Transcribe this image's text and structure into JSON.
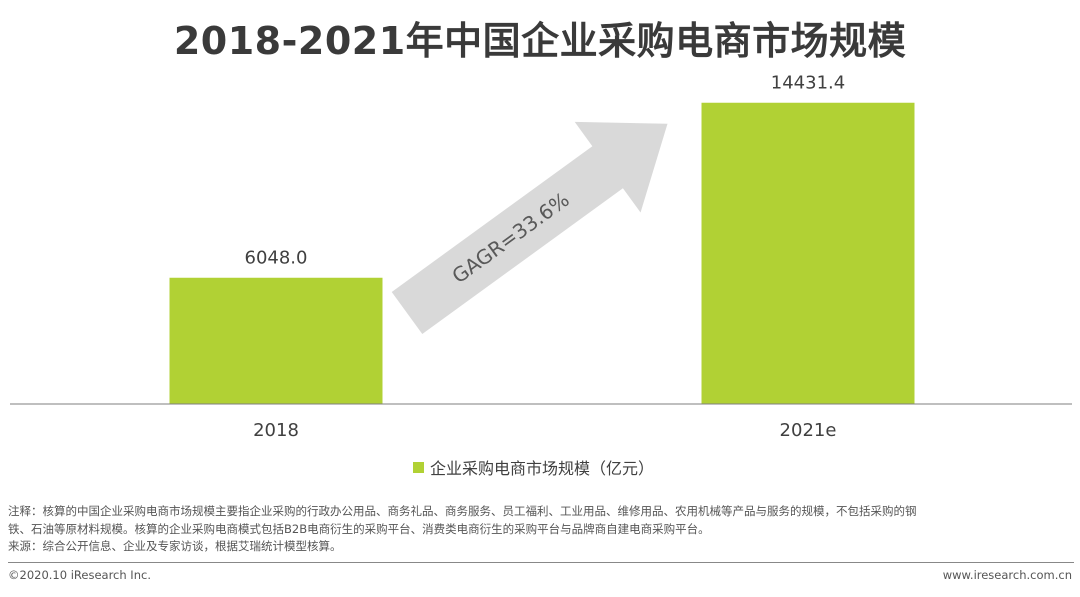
{
  "title": "2018-2021年中国企业采购电商市场规模",
  "chart_data": {
    "type": "bar",
    "categories": [
      "2018",
      "2021e"
    ],
    "series": [
      {
        "name": "企业采购电商市场规模（亿元）",
        "values": [
          6048.0,
          14431.4
        ]
      }
    ],
    "value_labels": [
      "6048.0",
      "14431.4"
    ],
    "annotation": "GAGR=33.6%",
    "ylim": [
      0,
      16000
    ],
    "grid": false,
    "legend_position": "bottom-center",
    "bar_color": "#b1d134",
    "arrow_color": "#d9d9d9"
  },
  "notes": {
    "line1": "注释：核算的中国企业采购电商市场规模主要指企业采购的行政办公用品、商务礼品、商务服务、员工福利、工业用品、维修用品、农用机械等产品与服务的规模，不包括采购的钢",
    "line2": "铁、石油等原材料规模。核算的企业采购电商模式包括B2B电商衍生的采购平台、消费类电商衍生的采购平台与品牌商自建电商采购平台。",
    "source": "来源：综合公开信息、企业及专家访谈，根据艾瑞统计模型核算。"
  },
  "footer": {
    "copyright": "©2020.10 iResearch Inc.",
    "website": "www.iresearch.com.cn"
  }
}
